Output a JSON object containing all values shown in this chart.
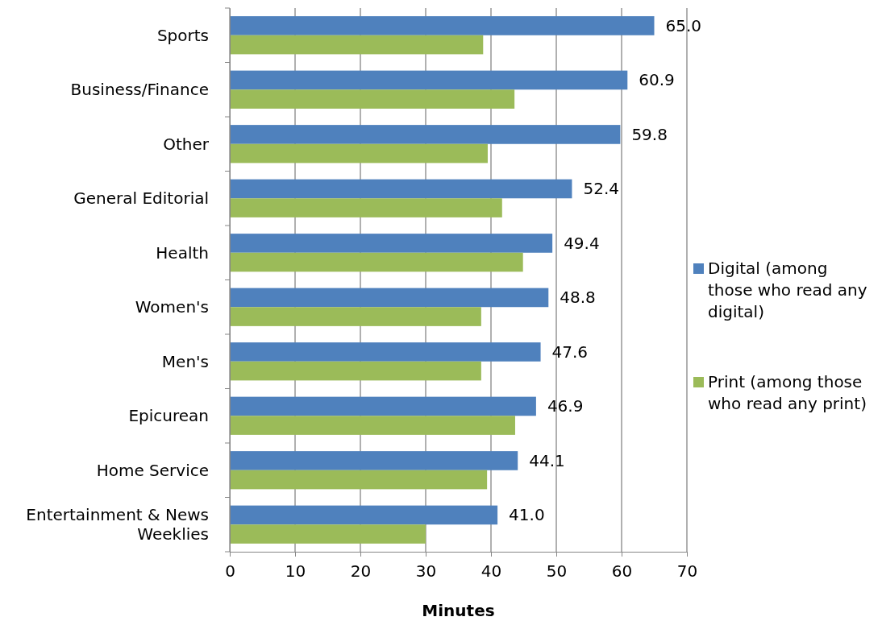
{
  "chart_data": {
    "type": "bar",
    "orientation": "horizontal",
    "xlabel": "Minutes",
    "categories": [
      "Sports",
      "Business/Finance",
      "Other",
      "General Editorial",
      "Health",
      "Women's",
      "Men's",
      "Epicurean",
      "Home Service",
      "Entertainment & News Weeklies"
    ],
    "series": [
      {
        "name": "Digital (among those who read any digital)",
        "color": "#4f81bd",
        "values": [
          65.0,
          60.9,
          59.8,
          52.4,
          49.4,
          48.8,
          47.6,
          46.9,
          44.1,
          41.0
        ],
        "value_labels": [
          "65.0",
          "60.9",
          "59.8",
          "52.4",
          "49.4",
          "48.8",
          "47.6",
          "46.9",
          "44.1",
          "41.0"
        ]
      },
      {
        "name": "Print (among those who read any print)",
        "color": "#9bbb59",
        "values": [
          38.8,
          43.6,
          39.5,
          41.7,
          44.9,
          38.5,
          38.5,
          43.7,
          39.4,
          30.0
        ]
      }
    ],
    "xlim": [
      0,
      70
    ],
    "xticks": [
      0,
      10,
      20,
      30,
      40,
      50,
      60,
      70
    ],
    "grid": "x",
    "legend": "right"
  }
}
